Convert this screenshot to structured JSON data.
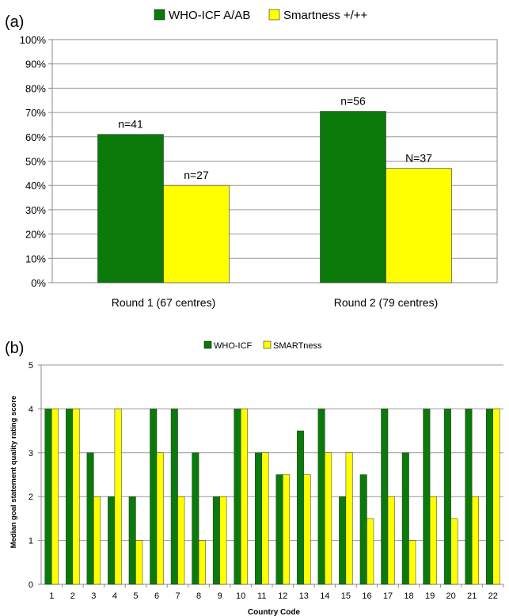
{
  "chart_data": [
    {
      "type": "bar",
      "panel_label": "(a)",
      "categories": [
        "Round 1 (67 centres)",
        "Round 2 (79 centres)"
      ],
      "series": [
        {
          "name": "WHO-ICF A/AB",
          "values": [
            61,
            70.5
          ],
          "color": "#0a7a0a",
          "labels": [
            "n=41",
            "n=56"
          ]
        },
        {
          "name": "Smartness +/++",
          "values": [
            40,
            47
          ],
          "color": "#ffff00",
          "labels": [
            "n=27",
            "N=37"
          ]
        }
      ],
      "yticks": [
        "0%",
        "10%",
        "20%",
        "30%",
        "40%",
        "50%",
        "60%",
        "70%",
        "80%",
        "90%",
        "100%"
      ],
      "ylim": [
        0,
        100
      ],
      "grid": true,
      "legend": "top"
    },
    {
      "type": "bar",
      "panel_label": "(b)",
      "categories": [
        "1",
        "2",
        "3",
        "4",
        "5",
        "6",
        "7",
        "8",
        "9",
        "10",
        "11",
        "12",
        "13",
        "14",
        "15",
        "16",
        "17",
        "18",
        "19",
        "20",
        "21",
        "22"
      ],
      "series": [
        {
          "name": "WHO-ICF",
          "values": [
            4,
            4,
            3,
            2,
            2,
            4,
            4,
            3,
            2,
            4,
            3,
            2.5,
            3.5,
            4,
            2,
            2.5,
            4,
            3,
            4,
            4,
            4,
            4
          ],
          "color": "#0a7a0a"
        },
        {
          "name": "SMARTness",
          "values": [
            4,
            4,
            2,
            4,
            1,
            3,
            2,
            1,
            2,
            4,
            3,
            2.5,
            2.5,
            3,
            3,
            1.5,
            2,
            1,
            2,
            1.5,
            2,
            4
          ],
          "color": "#ffff00"
        }
      ],
      "yticks": [
        "0",
        "1",
        "2",
        "3",
        "4",
        "5"
      ],
      "ylim": [
        0,
        5
      ],
      "xlabel": "Country Code",
      "ylabel": "Median goal statement quality rating score",
      "grid": true,
      "legend": "top"
    }
  ]
}
